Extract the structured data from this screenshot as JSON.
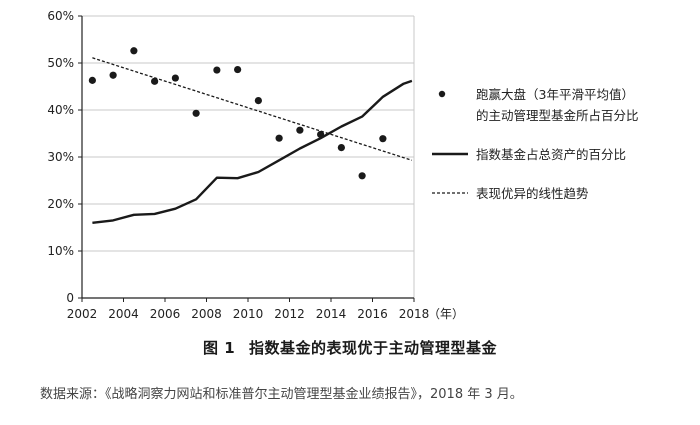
{
  "chart_data": {
    "type": "scatter+line",
    "x_unit": "（年）",
    "xlim": [
      2002,
      2018
    ],
    "ylim": [
      0,
      60
    ],
    "x_ticks": [
      "2002",
      "2004",
      "2006",
      "2008",
      "2010",
      "2012",
      "2014",
      "2016",
      "2018"
    ],
    "y_ticks": [
      "0",
      "10%",
      "20%",
      "30%",
      "40%",
      "50%",
      "60%"
    ],
    "grid": "horizontal",
    "legend_position": "right",
    "series": [
      {
        "name": "跑赢大盘（3年平滑平均值）的主动管理型基金所占百分比",
        "name_lines": [
          "跑赢大盘（3年平滑平均值）",
          "的主动管理型基金所占百分比"
        ],
        "style": "dots",
        "x": [
          2002.5,
          2003.5,
          2004.5,
          2005.5,
          2006.5,
          2007.5,
          2008.5,
          2009.5,
          2010.5,
          2011.5,
          2012.5,
          2013.5,
          2014.5,
          2015.5,
          2016.5
        ],
        "y": [
          46.3,
          47.4,
          52.6,
          46.1,
          46.8,
          39.3,
          48.5,
          48.6,
          42.0,
          34.0,
          35.7,
          34.8,
          32.0,
          26.0,
          33.9
        ]
      },
      {
        "name": "指数基金占总资产的百分比",
        "style": "solid",
        "x": [
          2002.5,
          2003.5,
          2004.5,
          2005.5,
          2006.5,
          2007.5,
          2008.5,
          2009.5,
          2010.5,
          2011.5,
          2012.5,
          2013.5,
          2014.5,
          2015.5,
          2016.5,
          2017.5,
          2017.9
        ],
        "y": [
          16.0,
          16.5,
          17.7,
          17.9,
          19.0,
          21.0,
          25.6,
          25.5,
          26.8,
          29.3,
          31.8,
          34.0,
          36.5,
          38.6,
          42.8,
          45.6,
          46.2
        ]
      },
      {
        "name": "表现优异的线性趋势",
        "style": "dashed",
        "x": [
          2002.5,
          2017.9
        ],
        "y": [
          51.1,
          29.3
        ]
      }
    ]
  },
  "figure": {
    "label": "图 1",
    "title": "指数基金的表现优于主动管理型基金"
  },
  "source_note": "数据来源：《战略洞察力网站和标准普尔主动管理型基金业绩报告》，2018 年 3 月。",
  "colors": {
    "series": "#1a1a1a",
    "grid": "#c8c8c8",
    "axis": "#222222"
  }
}
